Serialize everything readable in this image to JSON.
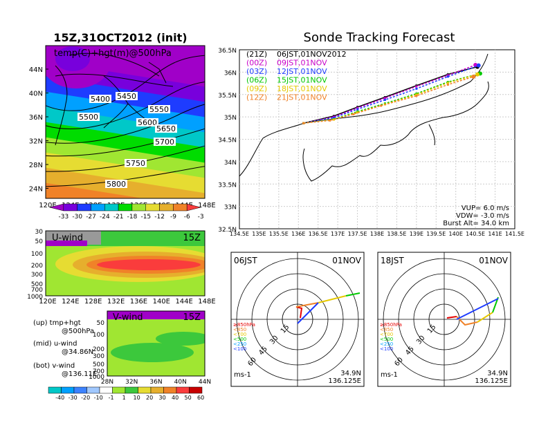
{
  "left_panel": {
    "title": "15Z,31OCT2012 (init)",
    "map_label": "temp(C)+hgt(m)@500hPa",
    "lat_ticks": [
      "44N",
      "40N",
      "36N",
      "32N",
      "28N",
      "24N"
    ],
    "lon_ticks": [
      "120E",
      "124E",
      "128E",
      "132E",
      "136E",
      "140E",
      "144E",
      "148E"
    ],
    "contour_labels": [
      "5400",
      "5450",
      "5500",
      "5550",
      "5600",
      "5650",
      "5700",
      "5750",
      "5800"
    ],
    "temp_colorbar_labels": [
      "-33",
      "-30",
      "-27",
      "-24",
      "-21",
      "-18",
      "-15",
      "-12",
      "-9",
      "-6",
      "-3"
    ],
    "temp_colors": [
      "#a000c8",
      "#7800dc",
      "#1e3cff",
      "#00a0ff",
      "#00c8c8",
      "#00dc00",
      "#a0e632",
      "#e6dc32",
      "#e6af2d",
      "#f08228",
      "#fa3c3c"
    ],
    "uwind": {
      "label": "U-wind",
      "time": "15Z",
      "p_ticks": [
        "30",
        "50",
        "100",
        "200",
        "300",
        "500",
        "700",
        "1000"
      ],
      "lon_ticks": [
        "120E",
        "124E",
        "128E",
        "132E",
        "136E",
        "140E",
        "144E",
        "148E"
      ]
    },
    "vwind": {
      "label": "V-wind",
      "time": "15Z",
      "p_ticks": [
        "50",
        "100",
        "200",
        "300",
        "500",
        "700",
        "1000"
      ],
      "lat_ticks": [
        "28N",
        "32N",
        "36N",
        "40N",
        "44N"
      ]
    },
    "legend_lines": [
      "(up) tmp+hgt",
      "@500hPa",
      "(mid) u-wind",
      "@34.86N",
      "(bot) v-wind",
      "@136.11E"
    ],
    "wind_colorbar_labels": [
      "-40",
      "-30",
      "-20",
      "-10",
      "-1",
      "1",
      "10",
      "20",
      "30",
      "40",
      "50",
      "60"
    ],
    "wind_colors": [
      "#00c8c8",
      "#00a0ff",
      "#3c82ff",
      "#a0c8ff",
      "#ffffff",
      "#a0e632",
      "#3cc83c",
      "#e6dc32",
      "#e6af2d",
      "#f08228",
      "#fa3c3c",
      "#c80000"
    ]
  },
  "right_panel": {
    "title": "Sonde Tracking Forecast",
    "lat_ticks": [
      "36.5N",
      "36N",
      "35.5N",
      "35N",
      "34.5N",
      "34N",
      "33.5N",
      "33N",
      "32.5N"
    ],
    "lon_ticks": [
      "134.5E",
      "135E",
      "135.5E",
      "136E",
      "136.5E",
      "137E",
      "137.5E",
      "138E",
      "138.5E",
      "139E",
      "139.5E",
      "140E",
      "140.5E",
      "141E",
      "141.5E"
    ],
    "launches": [
      {
        "code": "(21Z)",
        "time": "06JST,01NOV2012",
        "color": "#000000"
      },
      {
        "code": "(00Z)",
        "time": "09JST,01NOV",
        "color": "#c800c8"
      },
      {
        "code": "(03Z)",
        "time": "12JST,01NOV",
        "color": "#1e3cff"
      },
      {
        "code": "(06Z)",
        "time": "15JST,01NOV",
        "color": "#00c800"
      },
      {
        "code": "(09Z)",
        "time": "18JST,01NOV",
        "color": "#e6c800"
      },
      {
        "code": "(12Z)",
        "time": "21JST,01NOV",
        "color": "#f08228"
      }
    ],
    "params": [
      "VUP= 6.0 m/s",
      "VDW= -3.0 m/s",
      "Burst Alt= 34.0 km"
    ],
    "polar_left": {
      "time": "06JST",
      "date": "01NOV",
      "coord1": "34.9N",
      "coord2": "136.125E"
    },
    "polar_right": {
      "time": "18JST",
      "date": "01NOV",
      "coord1": "34.9N",
      "coord2": "136.125E"
    },
    "polar_rings": [
      "15",
      "30",
      "45",
      "60"
    ],
    "polar_unit": "ms-1",
    "polar_legend": [
      "≥850hPa",
      "<850",
      "<700",
      "<500",
      "<250",
      "<100"
    ],
    "polar_legend_colors": [
      "#e60000",
      "#f08228",
      "#e6c800",
      "#00c800",
      "#00a0ff",
      "#1e3cff"
    ]
  },
  "chart_data": [
    {
      "type": "line",
      "title": "Sonde Tracking Forecast",
      "xlabel": "",
      "ylabel": "",
      "xlim": [
        134.5,
        141.5
      ],
      "ylim": [
        32.5,
        36.5
      ],
      "series": [
        {
          "name": "(21Z) 06JST,01NOV2012",
          "color": "#000000",
          "points": [
            [
              136.13,
              34.86
            ],
            [
              136.9,
              35.02
            ],
            [
              137.5,
              35.22
            ],
            [
              138.2,
              35.44
            ],
            [
              139.0,
              35.7
            ],
            [
              139.8,
              35.95
            ],
            [
              140.55,
              36.12
            ]
          ]
        },
        {
          "name": "(00Z) 09JST,01NOV",
          "color": "#c800c8",
          "points": [
            [
              136.13,
              34.86
            ],
            [
              136.9,
              35.0
            ],
            [
              137.5,
              35.2
            ],
            [
              138.2,
              35.42
            ],
            [
              139.0,
              35.68
            ],
            [
              139.8,
              35.93
            ],
            [
              140.5,
              36.16
            ]
          ]
        },
        {
          "name": "(03Z) 12JST,01NOV",
          "color": "#1e3cff",
          "points": [
            [
              136.13,
              34.86
            ],
            [
              136.9,
              34.98
            ],
            [
              137.5,
              35.17
            ],
            [
              138.2,
              35.38
            ],
            [
              139.0,
              35.63
            ],
            [
              139.8,
              35.9
            ],
            [
              140.58,
              36.15
            ]
          ]
        },
        {
          "name": "(06Z) 15JST,01NOV",
          "color": "#00c800",
          "points": [
            [
              136.13,
              34.86
            ],
            [
              136.9,
              34.95
            ],
            [
              137.5,
              35.12
            ],
            [
              138.2,
              35.3
            ],
            [
              139.0,
              35.52
            ],
            [
              139.8,
              35.78
            ],
            [
              140.62,
              35.97
            ]
          ]
        },
        {
          "name": "(09Z) 18JST,01NOV",
          "color": "#e6c800",
          "points": [
            [
              136.13,
              34.86
            ],
            [
              136.9,
              34.94
            ],
            [
              137.5,
              35.1
            ],
            [
              138.2,
              35.28
            ],
            [
              139.0,
              35.5
            ],
            [
              139.8,
              35.76
            ],
            [
              140.55,
              35.95
            ]
          ]
        },
        {
          "name": "(12Z) 21JST,01NOV",
          "color": "#f08228",
          "points": [
            [
              136.13,
              34.86
            ],
            [
              136.8,
              34.92
            ],
            [
              137.4,
              35.06
            ],
            [
              138.1,
              35.25
            ],
            [
              139.0,
              35.47
            ],
            [
              139.8,
              35.72
            ],
            [
              140.45,
              35.9
            ]
          ]
        }
      ]
    }
  ]
}
